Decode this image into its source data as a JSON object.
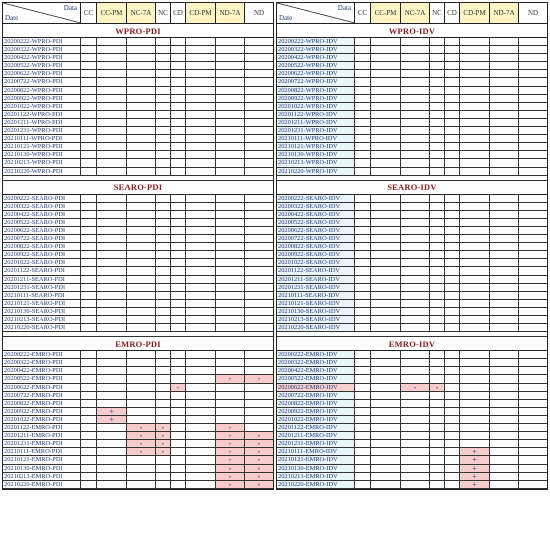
{
  "header": {
    "data_label": "Data",
    "date_label": "Date",
    "columns": [
      "CC",
      "CC-PM",
      "NC-7A",
      "NC",
      "CD",
      "CD-PM",
      "ND-7A",
      "ND"
    ]
  },
  "sections": [
    {
      "left": {
        "title": "WPRO-PDI",
        "rows": [
          {
            "label": "20200222-WPRO-PDI",
            "marks": {}
          },
          {
            "label": "20200322-WPRO-PDI",
            "marks": {}
          },
          {
            "label": "20200422-WPRO-PDI",
            "marks": {}
          },
          {
            "label": "20200522-WPRO-PDI",
            "marks": {}
          },
          {
            "label": "20200622-WPRO-PDI",
            "marks": {}
          },
          {
            "label": "20200722-WPRO-PDI",
            "marks": {}
          },
          {
            "label": "20200822-WPRO-PDI",
            "marks": {}
          },
          {
            "label": "20200922-WPRO-PDI",
            "marks": {}
          },
          {
            "label": "20201022-WPRO-PDI",
            "marks": {}
          },
          {
            "label": "20201122-WPRO-PDI",
            "marks": {}
          },
          {
            "label": "20201211-WPRO-PDI",
            "marks": {}
          },
          {
            "label": "20201231-WPRO-PDI",
            "marks": {}
          },
          {
            "label": "20210111-WPRO-PDI",
            "marks": {}
          },
          {
            "label": "20210121-WPRO-PDI",
            "marks": {}
          },
          {
            "label": "20210130-WPRO-PDI",
            "marks": {}
          },
          {
            "label": "20210213-WPRO-PDI",
            "marks": {}
          },
          {
            "label": "20210220-WPRO-PDI",
            "marks": {}
          }
        ]
      },
      "right": {
        "title": "WPRO-IDV",
        "rows": [
          {
            "label": "20200222-WPRO-IDV",
            "marks": {}
          },
          {
            "label": "20200322-WPRO-IDV",
            "marks": {}
          },
          {
            "label": "20200422-WPRO-IDV",
            "marks": {}
          },
          {
            "label": "20200522-WPRO-IDV",
            "marks": {}
          },
          {
            "label": "20200622-WPRO-IDV",
            "marks": {}
          },
          {
            "label": "20200722-WPRO-IDV",
            "marks": {}
          },
          {
            "label": "20200822-WPRO-IDV",
            "marks": {}
          },
          {
            "label": "20200922-WPRO-IDV",
            "marks": {}
          },
          {
            "label": "20201022-WPRO-IDV",
            "marks": {}
          },
          {
            "label": "20201122-WPRO-IDV",
            "marks": {}
          },
          {
            "label": "20201211-WPRO-IDV",
            "marks": {}
          },
          {
            "label": "20201231-WPRO-IDV",
            "marks": {}
          },
          {
            "label": "20210111-WPRO-IDV",
            "marks": {}
          },
          {
            "label": "20210121-WPRO-IDV",
            "marks": {}
          },
          {
            "label": "20210130-WPRO-IDV",
            "marks": {}
          },
          {
            "label": "20210213-WPRO-IDV",
            "marks": {}
          },
          {
            "label": "20210220-WPRO-IDV",
            "marks": {}
          }
        ]
      }
    },
    {
      "left": {
        "title": "SEARO-PDI",
        "rows": [
          {
            "label": "20200222-SEARO-PDI",
            "marks": {}
          },
          {
            "label": "20200322-SEARO-PDI",
            "marks": {}
          },
          {
            "label": "20200422-SEARO-PDI",
            "marks": {}
          },
          {
            "label": "20200522-SEARO-PDI",
            "marks": {}
          },
          {
            "label": "20200622-SEARO-PDI",
            "marks": {}
          },
          {
            "label": "20200722-SEARO-PDI",
            "marks": {}
          },
          {
            "label": "20200822-SEARO-PDI",
            "marks": {}
          },
          {
            "label": "20200922-SEARO-PDI",
            "marks": {}
          },
          {
            "label": "20201022-SEARO-PDI",
            "marks": {}
          },
          {
            "label": "20201122-SEARO-PDI",
            "marks": {}
          },
          {
            "label": "20201211-SEARO-PDI",
            "marks": {}
          },
          {
            "label": "20201231-SEARO-PDI",
            "marks": {}
          },
          {
            "label": "20210111-SEARO-PDI",
            "marks": {}
          },
          {
            "label": "20210121-SEARO-PDI",
            "marks": {}
          },
          {
            "label": "20210130-SEARO-PDI",
            "marks": {}
          },
          {
            "label": "20210213-SEARO-PDI",
            "marks": {}
          },
          {
            "label": "20210220-SEARO-PDI",
            "marks": {}
          }
        ]
      },
      "right": {
        "title": "SEARO-IDV",
        "rows": [
          {
            "label": "20200222-SEARO-IDV",
            "marks": {}
          },
          {
            "label": "20200322-SEARO-IDV",
            "marks": {}
          },
          {
            "label": "20200422-SEARO-IDV",
            "marks": {}
          },
          {
            "label": "20200522-SEARO-IDV",
            "marks": {}
          },
          {
            "label": "20200622-SEARO-IDV",
            "marks": {}
          },
          {
            "label": "20200722-SEARO-IDV",
            "marks": {}
          },
          {
            "label": "20200822-SEARO-IDV",
            "marks": {}
          },
          {
            "label": "20200922-SEARO-IDV",
            "marks": {}
          },
          {
            "label": "20201022-SEARO-IDV",
            "marks": {}
          },
          {
            "label": "20201122-SEARO-IDV",
            "marks": {}
          },
          {
            "label": "20201211-SEARO-IDV",
            "marks": {}
          },
          {
            "label": "20201231-SEARO-IDV",
            "marks": {}
          },
          {
            "label": "20210111-SEARO-IDV",
            "marks": {}
          },
          {
            "label": "20210121-SEARO-IDV",
            "marks": {}
          },
          {
            "label": "20210130-SEARO-IDV",
            "marks": {}
          },
          {
            "label": "20210213-SEARO-IDV",
            "marks": {}
          },
          {
            "label": "20210220-SEARO-IDV",
            "marks": {}
          }
        ]
      }
    },
    {
      "left": {
        "title": "EMRO-PDI",
        "rows": [
          {
            "label": "20200222-EMRO-PDI",
            "marks": {}
          },
          {
            "label": "20200322-EMRO-PDI",
            "marks": {}
          },
          {
            "label": "20200422-EMRO-PDI",
            "marks": {}
          },
          {
            "label": "20200522-EMRO-PDI",
            "marks": {
              "6": "-",
              "7": "-"
            }
          },
          {
            "label": "20200622-EMRO-PDI",
            "marks": {
              "4": "-"
            }
          },
          {
            "label": "20200722-EMRO-PDI",
            "marks": {}
          },
          {
            "label": "20200822-EMRO-PDI",
            "marks": {}
          },
          {
            "label": "20200922-EMRO-PDI",
            "marks": {
              "1": "+"
            }
          },
          {
            "label": "20201022-EMRO-PDI",
            "marks": {
              "1": "+"
            }
          },
          {
            "label": "20201122-EMRO-PDI",
            "marks": {
              "2": "-",
              "3": "-",
              "6": "-"
            }
          },
          {
            "label": "20201211-EMRO-PDI",
            "marks": {
              "2": "-",
              "3": "-",
              "6": "-",
              "7": "-"
            }
          },
          {
            "label": "20201231-EMRO-PDI",
            "marks": {
              "2": "-",
              "3": "-",
              "6": "-",
              "7": "-"
            }
          },
          {
            "label": "20210111-EMRO-PDI",
            "marks": {
              "2": "-",
              "3": "-",
              "6": "-",
              "7": "-"
            }
          },
          {
            "label": "20210121-EMRO-PDI",
            "marks": {
              "6": "-",
              "7": "-"
            }
          },
          {
            "label": "20210130-EMRO-PDI",
            "marks": {
              "6": "-",
              "7": "-"
            }
          },
          {
            "label": "20210213-EMRO-PDI",
            "marks": {
              "6": "-",
              "7": "-"
            }
          },
          {
            "label": "20210220-EMRO-PDI",
            "marks": {
              "6": "-",
              "7": "-"
            }
          }
        ]
      },
      "right": {
        "title": "EMRO-IDV",
        "rows": [
          {
            "label": "20200222-EMRO-IDV",
            "marks": {}
          },
          {
            "label": "20200322-EMRO-IDV",
            "marks": {}
          },
          {
            "label": "20200422-EMRO-IDV",
            "marks": {}
          },
          {
            "label": "20200522-EMRO-IDV",
            "marks": {}
          },
          {
            "label": "20200622-EMRO-IDV",
            "marks": {
              "2": "-",
              "3": "-"
            },
            "hl": true
          },
          {
            "label": "20200722-EMRO-IDV",
            "marks": {}
          },
          {
            "label": "20200822-EMRO-IDV",
            "marks": {}
          },
          {
            "label": "20200922-EMRO-IDV",
            "marks": {}
          },
          {
            "label": "20201022-EMRO-IDV",
            "marks": {}
          },
          {
            "label": "20201122-EMRO-IDV",
            "marks": {}
          },
          {
            "label": "20201211-EMRO-IDV",
            "marks": {}
          },
          {
            "label": "20201231-EMRO-IDV",
            "marks": {}
          },
          {
            "label": "20210111-EMRO-IDV",
            "marks": {
              "5": "+"
            }
          },
          {
            "label": "20210121-EMRO-IDV",
            "marks": {
              "5": "+"
            }
          },
          {
            "label": "20210130-EMRO-IDV",
            "marks": {
              "5": "+"
            }
          },
          {
            "label": "20210213-EMRO-IDV",
            "marks": {
              "5": "+"
            }
          },
          {
            "label": "20210220-EMRO-IDV",
            "marks": {
              "5": "+"
            }
          }
        ]
      }
    }
  ],
  "colors": {
    "title": "#8a1b1b",
    "label": "#233a7a",
    "mark": "#2c3fa5",
    "highlight": "#f7cccc",
    "header_yellow": "#fdf3c4"
  }
}
